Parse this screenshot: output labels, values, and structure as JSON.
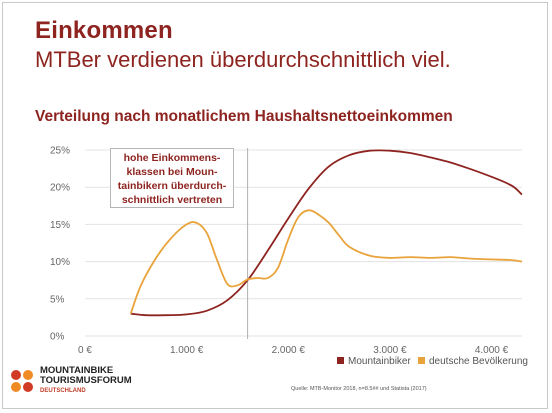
{
  "header": {
    "title": "Einkommen",
    "subtitle": "MTBer verdienen überdurchschnittlich viel."
  },
  "chart_data": {
    "type": "line",
    "title": "Verteilung nach monatlichem Haushaltsnettoeinkommen",
    "xlabel": "",
    "ylabel": "",
    "xlim": [
      0,
      4300
    ],
    "ylim": [
      0,
      25
    ],
    "x_ticks": [
      0,
      1000,
      2000,
      3000,
      4000
    ],
    "x_tick_labels": [
      "0 €",
      "1.000 €",
      "2.000 €",
      "3.000 €",
      "4.000 €"
    ],
    "y_ticks": [
      0,
      5,
      10,
      15,
      20,
      25
    ],
    "y_tick_labels": [
      "0%",
      "5%",
      "10%",
      "15%",
      "20%",
      "25%"
    ],
    "grid": true,
    "legend_position": "bottom-right",
    "reference_line_x": 1600,
    "annotation": [
      "hohe Einkommens-",
      "klassen bei Moun-",
      "tainbikern überdurch-",
      "schnittlich vertreten"
    ],
    "series": [
      {
        "name": "Mountainbiker",
        "color": "#8e2420",
        "x": [
          450,
          600,
          800,
          1000,
          1200,
          1400,
          1600,
          1800,
          2000,
          2200,
          2400,
          2600,
          2800,
          3000,
          3200,
          3400,
          3600,
          3800,
          4000,
          4200,
          4300
        ],
        "y": [
          3.0,
          2.8,
          2.8,
          2.9,
          3.4,
          4.8,
          7.5,
          11.5,
          15.8,
          19.8,
          22.8,
          24.3,
          24.9,
          24.9,
          24.6,
          24.0,
          23.3,
          22.4,
          21.4,
          20.2,
          19.0
        ]
      },
      {
        "name": "deutsche Bevölkerung",
        "color": "#e8a33a",
        "x": [
          450,
          550,
          700,
          850,
          1000,
          1100,
          1200,
          1300,
          1400,
          1500,
          1600,
          1700,
          1800,
          1900,
          2000,
          2100,
          2200,
          2300,
          2400,
          2500,
          2600,
          2800,
          3000,
          3200,
          3400,
          3600,
          3800,
          4000,
          4200,
          4300
        ],
        "y": [
          3.0,
          6.8,
          10.5,
          13.2,
          15.0,
          15.2,
          13.8,
          10.2,
          7.0,
          6.8,
          7.6,
          7.8,
          7.8,
          9.2,
          13.0,
          16.0,
          16.9,
          16.3,
          15.2,
          13.5,
          12.0,
          10.8,
          10.5,
          10.6,
          10.5,
          10.6,
          10.4,
          10.3,
          10.2,
          10.0
        ]
      }
    ]
  },
  "branding": {
    "logo_line1": "MOUNTAINBIKE",
    "logo_line2": "TOURISMUSFORUM",
    "logo_line3": "DEUTSCHLAND",
    "source": "Quelle: MTB-Monitor 2018, n=8.5## und Statista (2017)"
  }
}
